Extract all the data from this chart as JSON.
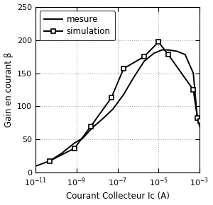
{
  "title": "",
  "xlabel": "Courant Collecteur Ic (A)",
  "ylabel": "Gain en courant β",
  "xlim": [
    1e-11,
    0.001
  ],
  "ylim": [
    0,
    250
  ],
  "yticks": [
    0,
    50,
    100,
    150,
    200,
    250
  ],
  "mesure_x": [
    1e-11,
    5e-11,
    2e-10,
    8e-10,
    2e-09,
    6e-09,
    2e-08,
    6e-08,
    2e-07,
    6e-07,
    2e-06,
    6e-06,
    1.5e-05,
    3e-05,
    8e-05,
    0.0002,
    0.0005,
    0.0008,
    0.0012
  ],
  "mesure_y": [
    10,
    18,
    30,
    45,
    52,
    68,
    82,
    96,
    118,
    143,
    168,
    180,
    185,
    185,
    183,
    178,
    150,
    80,
    64
  ],
  "sim_x": [
    5e-11,
    8e-10,
    5e-09,
    5e-08,
    2e-07,
    2e-06,
    1e-05,
    3e-05,
    0.0005,
    0.0008,
    0.0011
  ],
  "sim_y": [
    18,
    37,
    70,
    113,
    157,
    175,
    197,
    178,
    125,
    82,
    78
  ],
  "bg_color": "#ffffff",
  "line_color": "#000000",
  "grid_color": "#aaaaaa"
}
